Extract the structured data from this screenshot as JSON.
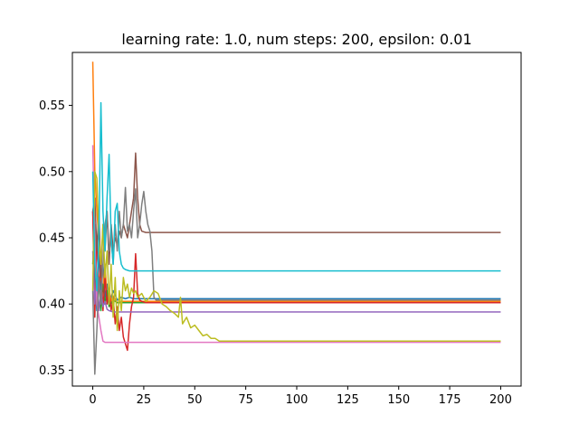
{
  "chart_data": {
    "type": "line",
    "title": "learning rate: 1.0, num steps: 200, epsilon: 0.01",
    "xlabel": "",
    "ylabel": "",
    "xlim": [
      -10,
      210
    ],
    "ylim": [
      0.338,
      0.59
    ],
    "xticks": [
      0,
      25,
      50,
      75,
      100,
      125,
      150,
      175,
      200
    ],
    "yticks": [
      0.35,
      0.4,
      0.45,
      0.5,
      0.55
    ],
    "ytick_labels": [
      "0.35",
      "0.40",
      "0.45",
      "0.50",
      "0.55"
    ],
    "grid": false,
    "legend": "none",
    "series": [
      {
        "color": "#1f77b4",
        "points": [
          [
            0,
            0.47
          ],
          [
            1,
            0.42
          ],
          [
            2,
            0.395
          ],
          [
            3,
            0.44
          ],
          [
            4,
            0.41
          ],
          [
            5,
            0.43
          ],
          [
            6,
            0.405
          ],
          [
            7,
            0.415
          ],
          [
            8,
            0.4
          ],
          [
            10,
            0.41
          ],
          [
            12,
            0.403
          ],
          [
            14,
            0.405
          ],
          [
            16,
            0.404
          ],
          [
            18,
            0.405
          ],
          [
            20,
            0.404
          ],
          [
            200,
            0.404
          ]
        ]
      },
      {
        "color": "#ff7f0e",
        "points": [
          [
            0,
            0.583
          ],
          [
            1,
            0.5
          ],
          [
            2,
            0.47
          ],
          [
            3,
            0.45
          ],
          [
            4,
            0.42
          ],
          [
            5,
            0.41
          ],
          [
            6,
            0.43
          ],
          [
            7,
            0.405
          ],
          [
            8,
            0.412
          ],
          [
            9,
            0.402
          ],
          [
            10,
            0.406
          ],
          [
            12,
            0.401
          ],
          [
            14,
            0.402
          ],
          [
            200,
            0.402
          ]
        ]
      },
      {
        "color": "#2ca02c",
        "points": [
          [
            0,
            0.43
          ],
          [
            1,
            0.46
          ],
          [
            2,
            0.4
          ],
          [
            3,
            0.42
          ],
          [
            4,
            0.395
          ],
          [
            5,
            0.415
          ],
          [
            6,
            0.4
          ],
          [
            7,
            0.41
          ],
          [
            8,
            0.398
          ],
          [
            10,
            0.403
          ],
          [
            12,
            0.401
          ],
          [
            200,
            0.401
          ]
        ]
      },
      {
        "color": "#d62728",
        "points": [
          [
            0,
            0.47
          ],
          [
            1,
            0.39
          ],
          [
            2,
            0.45
          ],
          [
            3,
            0.41
          ],
          [
            4,
            0.43
          ],
          [
            5,
            0.395
          ],
          [
            6,
            0.42
          ],
          [
            7,
            0.4
          ],
          [
            8,
            0.41
          ],
          [
            9,
            0.395
          ],
          [
            10,
            0.405
          ],
          [
            11,
            0.385
          ],
          [
            12,
            0.398
          ],
          [
            13,
            0.38
          ],
          [
            14,
            0.39
          ],
          [
            15,
            0.375
          ],
          [
            16,
            0.37
          ],
          [
            17,
            0.365
          ],
          [
            18,
            0.385
          ],
          [
            19,
            0.398
          ],
          [
            20,
            0.405
          ],
          [
            21,
            0.438
          ],
          [
            22,
            0.408
          ],
          [
            23,
            0.403
          ],
          [
            24,
            0.402
          ],
          [
            26,
            0.401
          ],
          [
            200,
            0.401
          ]
        ]
      },
      {
        "color": "#9467bd",
        "points": [
          [
            0,
            0.44
          ],
          [
            1,
            0.4
          ],
          [
            2,
            0.42
          ],
          [
            3,
            0.395
          ],
          [
            4,
            0.41
          ],
          [
            5,
            0.398
          ],
          [
            6,
            0.402
          ],
          [
            7,
            0.396
          ],
          [
            8,
            0.395
          ],
          [
            10,
            0.394
          ],
          [
            12,
            0.394
          ],
          [
            200,
            0.394
          ]
        ]
      },
      {
        "color": "#8c564b",
        "points": [
          [
            0,
            0.47
          ],
          [
            1,
            0.48
          ],
          [
            2,
            0.44
          ],
          [
            3,
            0.47
          ],
          [
            4,
            0.42
          ],
          [
            5,
            0.46
          ],
          [
            6,
            0.44
          ],
          [
            7,
            0.47
          ],
          [
            8,
            0.43
          ],
          [
            9,
            0.46
          ],
          [
            10,
            0.44
          ],
          [
            11,
            0.45
          ],
          [
            12,
            0.445
          ],
          [
            13,
            0.455
          ],
          [
            14,
            0.45
          ],
          [
            15,
            0.46
          ],
          [
            16,
            0.455
          ],
          [
            17,
            0.45
          ],
          [
            18,
            0.46
          ],
          [
            19,
            0.47
          ],
          [
            20,
            0.48
          ],
          [
            21,
            0.514
          ],
          [
            22,
            0.48
          ],
          [
            23,
            0.46
          ],
          [
            24,
            0.455
          ],
          [
            26,
            0.454
          ],
          [
            200,
            0.454
          ]
        ]
      },
      {
        "color": "#e377c2",
        "points": [
          [
            0,
            0.52
          ],
          [
            1,
            0.45
          ],
          [
            2,
            0.4
          ],
          [
            3,
            0.39
          ],
          [
            4,
            0.38
          ],
          [
            5,
            0.372
          ],
          [
            6,
            0.371
          ],
          [
            10,
            0.371
          ],
          [
            200,
            0.371
          ]
        ]
      },
      {
        "color": "#7f7f7f",
        "points": [
          [
            0,
            0.41
          ],
          [
            1,
            0.347
          ],
          [
            2,
            0.38
          ],
          [
            3,
            0.42
          ],
          [
            4,
            0.4
          ],
          [
            5,
            0.43
          ],
          [
            6,
            0.46
          ],
          [
            7,
            0.47
          ],
          [
            8,
            0.44
          ],
          [
            9,
            0.45
          ],
          [
            10,
            0.43
          ],
          [
            11,
            0.46
          ],
          [
            12,
            0.44
          ],
          [
            13,
            0.47
          ],
          [
            14,
            0.45
          ],
          [
            15,
            0.46
          ],
          [
            16,
            0.488
          ],
          [
            17,
            0.455
          ],
          [
            18,
            0.46
          ],
          [
            19,
            0.45
          ],
          [
            20,
            0.47
          ],
          [
            21,
            0.487
          ],
          [
            22,
            0.45
          ],
          [
            23,
            0.46
          ],
          [
            24,
            0.475
          ],
          [
            25,
            0.485
          ],
          [
            26,
            0.47
          ],
          [
            27,
            0.46
          ],
          [
            28,
            0.455
          ],
          [
            29,
            0.44
          ],
          [
            30,
            0.405
          ],
          [
            31,
            0.403
          ],
          [
            200,
            0.403
          ]
        ]
      },
      {
        "color": "#bcbd22",
        "points": [
          [
            0,
            0.41
          ],
          [
            1,
            0.5
          ],
          [
            2,
            0.495
          ],
          [
            3,
            0.45
          ],
          [
            4,
            0.43
          ],
          [
            5,
            0.46
          ],
          [
            6,
            0.42
          ],
          [
            7,
            0.44
          ],
          [
            8,
            0.4
          ],
          [
            9,
            0.43
          ],
          [
            10,
            0.39
          ],
          [
            11,
            0.42
          ],
          [
            12,
            0.38
          ],
          [
            13,
            0.41
          ],
          [
            14,
            0.395
          ],
          [
            15,
            0.42
          ],
          [
            16,
            0.41
          ],
          [
            17,
            0.415
          ],
          [
            18,
            0.405
          ],
          [
            19,
            0.412
          ],
          [
            20,
            0.408
          ],
          [
            21,
            0.41
          ],
          [
            22,
            0.405
          ],
          [
            24,
            0.408
          ],
          [
            26,
            0.402
          ],
          [
            28,
            0.405
          ],
          [
            30,
            0.41
          ],
          [
            32,
            0.408
          ],
          [
            34,
            0.4
          ],
          [
            36,
            0.398
          ],
          [
            38,
            0.395
          ],
          [
            40,
            0.393
          ],
          [
            42,
            0.39
          ],
          [
            43,
            0.405
          ],
          [
            44,
            0.385
          ],
          [
            46,
            0.39
          ],
          [
            48,
            0.382
          ],
          [
            50,
            0.384
          ],
          [
            52,
            0.38
          ],
          [
            54,
            0.376
          ],
          [
            56,
            0.377
          ],
          [
            58,
            0.374
          ],
          [
            60,
            0.374
          ],
          [
            62,
            0.372
          ],
          [
            200,
            0.372
          ]
        ]
      },
      {
        "color": "#17becf",
        "points": [
          [
            0,
            0.5
          ],
          [
            1,
            0.43
          ],
          [
            2,
            0.41
          ],
          [
            3,
            0.45
          ],
          [
            4,
            0.552
          ],
          [
            5,
            0.47
          ],
          [
            6,
            0.44
          ],
          [
            7,
            0.48
          ],
          [
            8,
            0.513
          ],
          [
            9,
            0.45
          ],
          [
            10,
            0.43
          ],
          [
            11,
            0.47
          ],
          [
            12,
            0.476
          ],
          [
            13,
            0.44
          ],
          [
            14,
            0.43
          ],
          [
            15,
            0.427
          ],
          [
            16,
            0.426
          ],
          [
            18,
            0.425
          ],
          [
            200,
            0.425
          ]
        ]
      }
    ]
  }
}
